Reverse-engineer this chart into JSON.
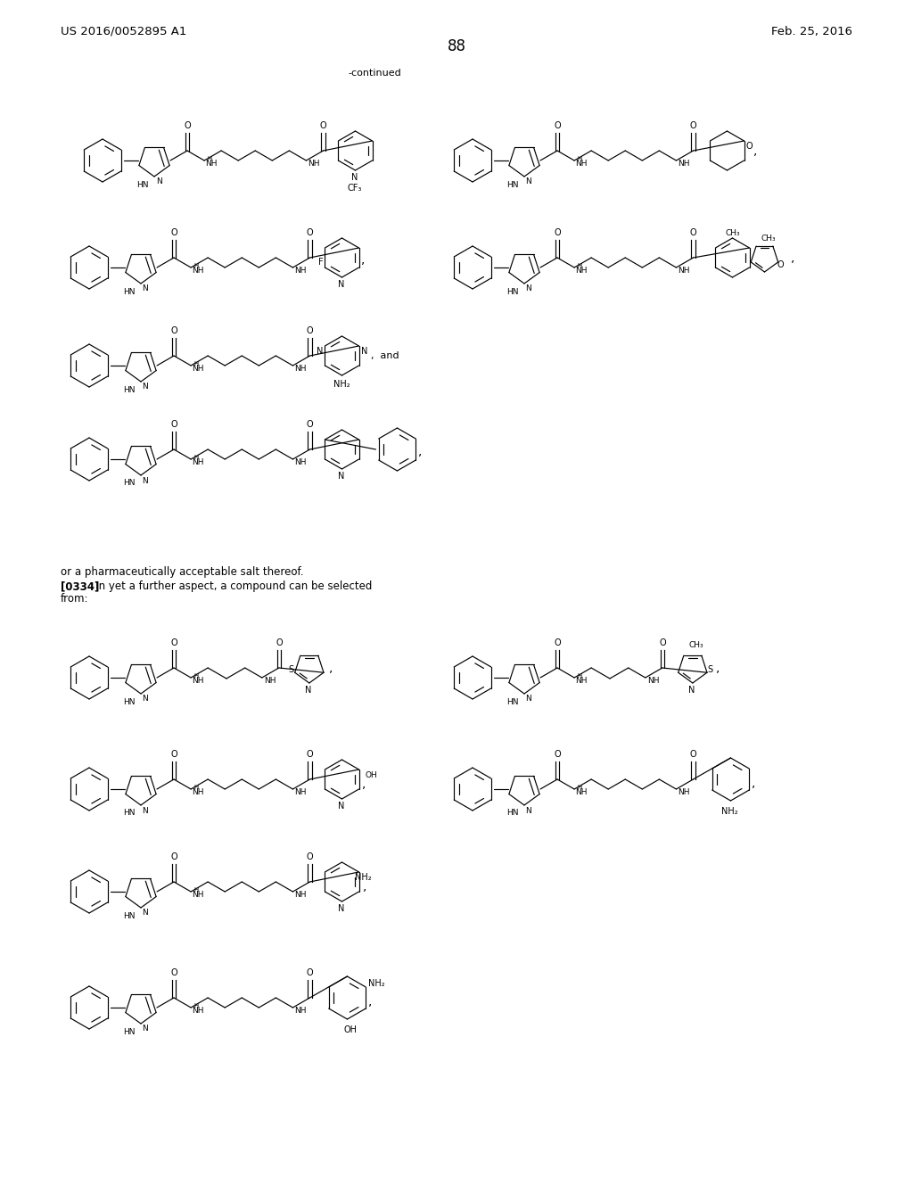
{
  "page_number": "88",
  "top_left_text": "US 2016/0052895 A1",
  "top_right_text": "Feb. 25, 2016",
  "continued_text": "-continued",
  "background_color": "#ffffff",
  "text_color": "#000000",
  "figsize": [
    10.24,
    13.2
  ],
  "dpi": 100,
  "paragraph_text_1": "or a pharmaceutically acceptable salt thereof.",
  "paragraph_text_2_bold": "[0334]",
  "paragraph_text_2_normal": "   In yet a further aspect, a compound can be selected",
  "paragraph_text_3": "from:",
  "font_size_header": 9.5,
  "font_size_body": 8.5,
  "font_size_page_num": 12
}
